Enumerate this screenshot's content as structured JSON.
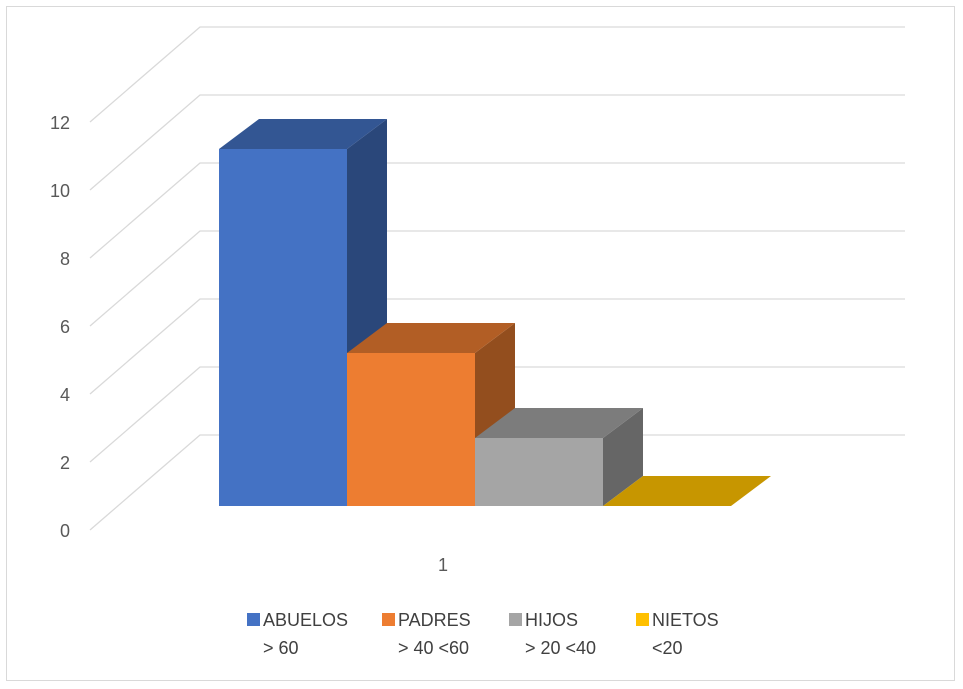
{
  "chart_data": {
    "type": "bar",
    "categories": [
      "1"
    ],
    "series": [
      {
        "name": "ABUELOS > 60",
        "legend_lines": [
          "ABUELOS",
          "> 60"
        ],
        "values": [
          10.5
        ],
        "color": "#4472C4"
      },
      {
        "name": "PADRES > 40 <60",
        "legend_lines": [
          "PADRES",
          "> 40 <60"
        ],
        "values": [
          4.5
        ],
        "color": "#ED7D31"
      },
      {
        "name": "HIJOS > 20 <40",
        "legend_lines": [
          "HIJOS",
          "> 20 <40"
        ],
        "values": [
          2
        ],
        "color": "#A5A5A5"
      },
      {
        "name": "NIETOS <20",
        "legend_lines": [
          "NIETOS",
          "<20"
        ],
        "values": [
          0
        ],
        "color": "#FFC000"
      }
    ],
    "ylim": [
      0,
      12
    ],
    "yticks": [
      0,
      2,
      4,
      6,
      8,
      10,
      12
    ],
    "grid": true,
    "legend_position": "bottom",
    "style": "3d-column"
  }
}
